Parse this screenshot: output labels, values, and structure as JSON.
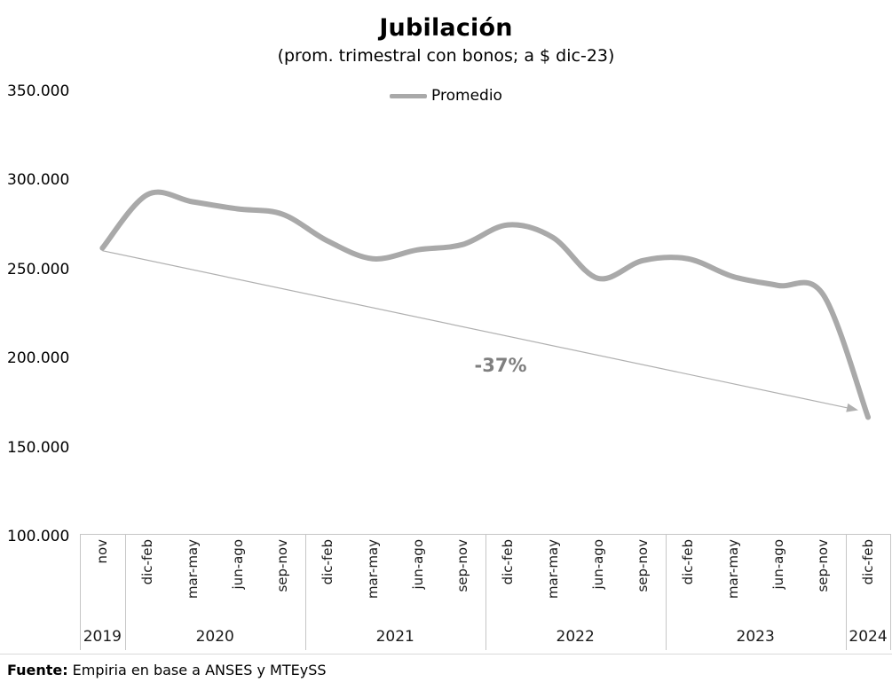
{
  "footer": {
    "source_label": "Fuente:",
    "source_text": "Empiria en base a ANSES y MTEySS"
  },
  "chart_data": {
    "type": "line",
    "title": "Jubilación",
    "subtitle": "(prom. trimestral con bonos; a $ dic-23)",
    "legend_position": "top",
    "grid": false,
    "ylim": [
      100000,
      350000
    ],
    "ytick_step": 50000,
    "ytick_labels": [
      "350.000",
      "300.000",
      "250.000",
      "200.000",
      "150.000",
      "100.000"
    ],
    "x_groups": [
      {
        "year": "2019",
        "ticks": [
          "nov"
        ]
      },
      {
        "year": "2020",
        "ticks": [
          "dic-feb",
          "mar-may",
          "jun-ago",
          "sep-nov"
        ]
      },
      {
        "year": "2021",
        "ticks": [
          "dic-feb",
          "mar-may",
          "jun-ago",
          "sep-nov"
        ]
      },
      {
        "year": "2022",
        "ticks": [
          "dic-feb",
          "mar-may",
          "jun-ago",
          "sep-nov"
        ]
      },
      {
        "year": "2023",
        "ticks": [
          "dic-feb",
          "mar-may",
          "jun-ago",
          "sep-nov"
        ]
      },
      {
        "year": "2024",
        "ticks": [
          "dic-feb"
        ]
      }
    ],
    "series": [
      {
        "name": "Promedio",
        "values": [
          262000,
          292000,
          288000,
          284000,
          281000,
          266000,
          256000,
          261000,
          264000,
          275000,
          268000,
          245000,
          255000,
          256000,
          246000,
          241000,
          236000,
          167000
        ]
      }
    ],
    "annotation": {
      "text": "-37%",
      "color": "#7f7f7f"
    },
    "colors": {
      "line": "#a9a9a9",
      "arrow": "#b0b0b0",
      "annotation_text": "#7f7f7f",
      "axis_border": "#c6c6c6",
      "bottom_rule": "#d9d9d9",
      "text": "#000000"
    }
  }
}
